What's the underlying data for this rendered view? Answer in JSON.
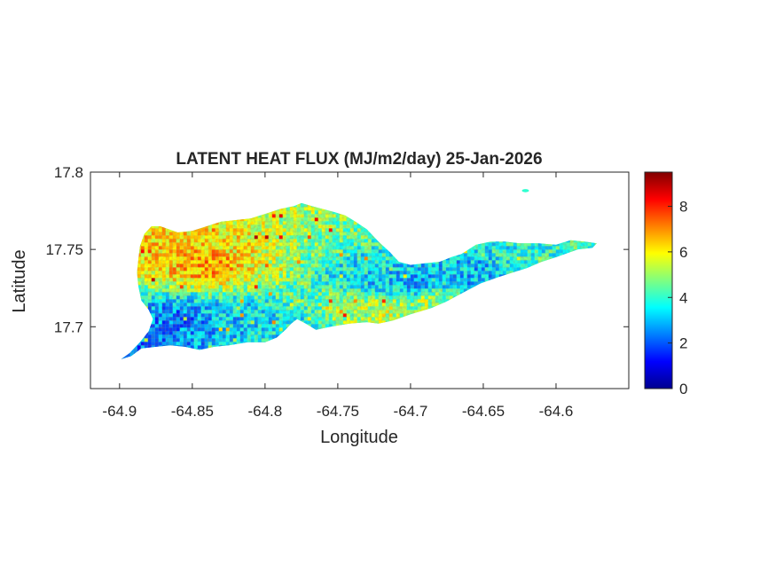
{
  "chart_data": {
    "type": "heatmap",
    "title": "LATENT HEAT FLUX (MJ/m2/day) 25-Jan-2026",
    "xlabel": "Longitude",
    "ylabel": "Latitude",
    "xlim": [
      -64.92,
      -64.55
    ],
    "ylim": [
      17.66,
      17.8
    ],
    "x_ticks": [
      -64.9,
      -64.85,
      -64.8,
      -64.75,
      -64.7,
      -64.65,
      -64.6
    ],
    "x_tick_labels": [
      "-64.9",
      "-64.85",
      "-64.8",
      "-64.75",
      "-64.7",
      "-64.65",
      "-64.6"
    ],
    "y_ticks": [
      17.7,
      17.75,
      17.8
    ],
    "y_tick_labels": [
      "17.7",
      "17.75",
      "17.8"
    ],
    "colorbar": {
      "colormap": "jet",
      "range": [
        0,
        9.5
      ],
      "ticks": [
        0,
        2,
        4,
        6,
        8
      ],
      "tick_labels": [
        "0",
        "2",
        "4",
        "6",
        "8"
      ]
    },
    "grid": false,
    "island_outline_lonlat": [
      [
        -64.899,
        17.679
      ],
      [
        -64.893,
        17.683
      ],
      [
        -64.886,
        17.69
      ],
      [
        -64.88,
        17.697
      ],
      [
        -64.877,
        17.705
      ],
      [
        -64.88,
        17.711
      ],
      [
        -64.885,
        17.717
      ],
      [
        -64.887,
        17.726
      ],
      [
        -64.888,
        17.735
      ],
      [
        -64.887,
        17.744
      ],
      [
        -64.886,
        17.752
      ],
      [
        -64.883,
        17.76
      ],
      [
        -64.878,
        17.765
      ],
      [
        -64.872,
        17.765
      ],
      [
        -64.866,
        17.763
      ],
      [
        -64.86,
        17.761
      ],
      [
        -64.85,
        17.762
      ],
      [
        -64.84,
        17.765
      ],
      [
        -64.83,
        17.768
      ],
      [
        -64.82,
        17.769
      ],
      [
        -64.81,
        17.77
      ],
      [
        -64.8,
        17.773
      ],
      [
        -64.79,
        17.776
      ],
      [
        -64.78,
        17.778
      ],
      [
        -64.775,
        17.78
      ],
      [
        -64.768,
        17.778
      ],
      [
        -64.76,
        17.776
      ],
      [
        -64.752,
        17.774
      ],
      [
        -64.745,
        17.772
      ],
      [
        -64.738,
        17.768
      ],
      [
        -64.73,
        17.763
      ],
      [
        -64.722,
        17.755
      ],
      [
        -64.714,
        17.748
      ],
      [
        -64.708,
        17.742
      ],
      [
        -64.7,
        17.74
      ],
      [
        -64.69,
        17.741
      ],
      [
        -64.68,
        17.742
      ],
      [
        -64.672,
        17.745
      ],
      [
        -64.665,
        17.747
      ],
      [
        -64.66,
        17.75
      ],
      [
        -64.655,
        17.753
      ],
      [
        -64.645,
        17.755
      ],
      [
        -64.635,
        17.755
      ],
      [
        -64.625,
        17.754
      ],
      [
        -64.612,
        17.754
      ],
      [
        -64.6,
        17.753
      ],
      [
        -64.59,
        17.756
      ],
      [
        -64.58,
        17.755
      ],
      [
        -64.572,
        17.754
      ],
      [
        -64.575,
        17.751
      ],
      [
        -64.585,
        17.75
      ],
      [
        -64.6,
        17.745
      ],
      [
        -64.61,
        17.742
      ],
      [
        -64.62,
        17.738
      ],
      [
        -64.63,
        17.735
      ],
      [
        -64.64,
        17.732
      ],
      [
        -64.652,
        17.728
      ],
      [
        -64.66,
        17.724
      ],
      [
        -64.668,
        17.72
      ],
      [
        -64.676,
        17.716
      ],
      [
        -64.686,
        17.712
      ],
      [
        -64.7,
        17.708
      ],
      [
        -64.712,
        17.704
      ],
      [
        -64.722,
        17.702
      ],
      [
        -64.73,
        17.703
      ],
      [
        -64.742,
        17.702
      ],
      [
        -64.755,
        17.7
      ],
      [
        -64.765,
        17.698
      ],
      [
        -64.772,
        17.702
      ],
      [
        -64.778,
        17.705
      ],
      [
        -64.782,
        17.702
      ],
      [
        -64.786,
        17.698
      ],
      [
        -64.792,
        17.693
      ],
      [
        -64.8,
        17.69
      ],
      [
        -64.812,
        17.69
      ],
      [
        -64.825,
        17.688
      ],
      [
        -64.835,
        17.687
      ],
      [
        -64.845,
        17.685
      ],
      [
        -64.855,
        17.687
      ],
      [
        -64.865,
        17.688
      ],
      [
        -64.875,
        17.687
      ],
      [
        -64.885,
        17.686
      ],
      [
        -64.892,
        17.681
      ]
    ],
    "islet_lonlat": [
      -64.621,
      17.788
    ],
    "value_regions": [
      {
        "lon": -64.86,
        "lat": 17.75,
        "value": 6.3
      },
      {
        "lon": -64.84,
        "lat": 17.743,
        "value": 7.0
      },
      {
        "lon": -64.82,
        "lat": 17.755,
        "value": 6.0
      },
      {
        "lon": -64.8,
        "lat": 17.76,
        "value": 5.5
      },
      {
        "lon": -64.78,
        "lat": 17.76,
        "value": 5.0
      },
      {
        "lon": -64.76,
        "lat": 17.755,
        "value": 4.5
      },
      {
        "lon": -64.74,
        "lat": 17.74,
        "value": 3.5
      },
      {
        "lon": -64.72,
        "lat": 17.73,
        "value": 3.2
      },
      {
        "lon": -64.7,
        "lat": 17.728,
        "value": 2.8
      },
      {
        "lon": -64.66,
        "lat": 17.735,
        "value": 3.0
      },
      {
        "lon": -64.62,
        "lat": 17.745,
        "value": 3.8
      },
      {
        "lon": -64.59,
        "lat": 17.752,
        "value": 4.0
      },
      {
        "lon": -64.86,
        "lat": 17.705,
        "value": 2.5
      },
      {
        "lon": -64.82,
        "lat": 17.705,
        "value": 3.2
      },
      {
        "lon": -64.78,
        "lat": 17.7,
        "value": 3.5
      },
      {
        "lon": -64.74,
        "lat": 17.712,
        "value": 5.0
      },
      {
        "lon": -64.72,
        "lat": 17.712,
        "value": 5.3
      },
      {
        "lon": -64.69,
        "lat": 17.716,
        "value": 5.0
      },
      {
        "lon": -64.89,
        "lat": 17.69,
        "value": 2.2
      }
    ]
  }
}
